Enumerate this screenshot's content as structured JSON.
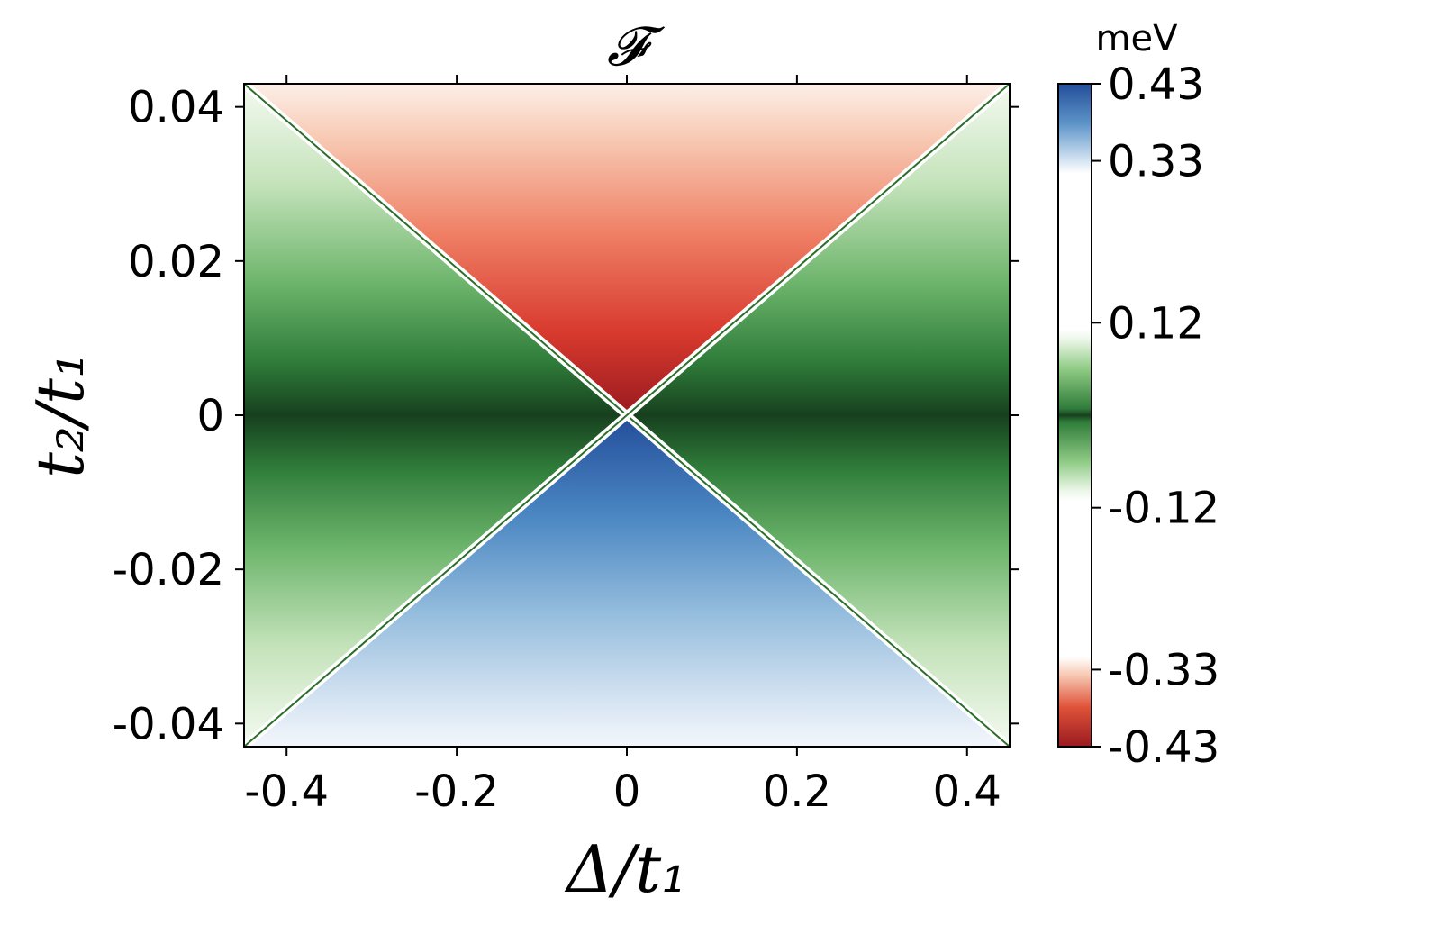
{
  "chart_data": {
    "type": "heatmap",
    "title": "𝓕",
    "xlabel": "Δ/t₁",
    "ylabel": "t₂/t₁",
    "xlim": [
      -0.45,
      0.45
    ],
    "ylim": [
      -0.043,
      0.043
    ],
    "x_ticks": [
      -0.4,
      -0.2,
      0,
      0.2,
      0.4
    ],
    "x_tick_labels": [
      "-0.4",
      "-0.2",
      "0",
      "0.2",
      "0.4"
    ],
    "y_ticks": [
      -0.04,
      -0.02,
      0,
      0.02,
      0.04
    ],
    "y_tick_labels": [
      "-0.04",
      "-0.02",
      "0",
      "0.02",
      "0.04"
    ],
    "phase_boundaries": [
      {
        "from": [
          -0.45,
          0.043
        ],
        "to": [
          0.45,
          -0.043
        ]
      },
      {
        "from": [
          -0.45,
          -0.043
        ],
        "to": [
          0.45,
          0.043
        ]
      }
    ],
    "regions": [
      {
        "position": "top",
        "colormap": "reds",
        "value_range": [
          -0.43,
          -0.33
        ]
      },
      {
        "position": "bottom",
        "colormap": "blues",
        "value_range": [
          0.33,
          0.43
        ]
      },
      {
        "position": "left",
        "colormap": "greens",
        "value_range": [
          -0.12,
          0.12
        ]
      },
      {
        "position": "right",
        "colormap": "greens",
        "value_range": [
          -0.12,
          0.12
        ]
      }
    ],
    "colorbar": {
      "unit": "meV",
      "ticks": [
        0.43,
        0.33,
        0.12,
        -0.12,
        -0.33,
        -0.43
      ],
      "tick_labels": [
        "0.43",
        "0.33",
        "0.12",
        "-0.12",
        "-0.33",
        "-0.43"
      ],
      "colors": {
        "red_dark": "#9a1a1f",
        "red_light": "#fbe9e0",
        "green_dark": "#1b4a22",
        "green_light": "#eef6ea",
        "blue_dark": "#234d9a",
        "blue_light": "#f3f7fc",
        "boundary": "#2a6e2a"
      }
    }
  }
}
